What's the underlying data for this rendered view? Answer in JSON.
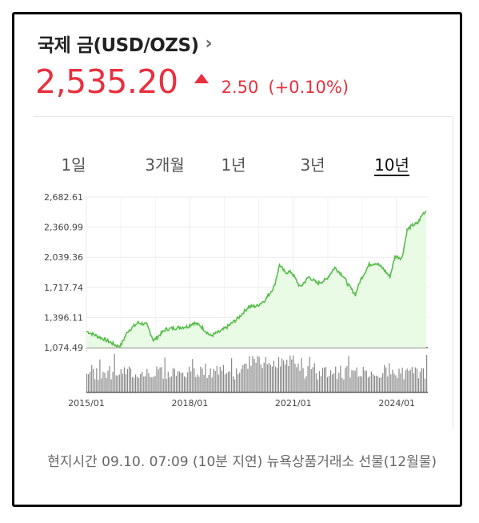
{
  "header": {
    "title": "국제 금(USD/OZS)",
    "price": "2,535.20",
    "change": "2.50",
    "change_pct": "(+0.10%)",
    "direction": "up",
    "accent_color": "#e8303f"
  },
  "tabs": [
    {
      "label": "1일",
      "active": false
    },
    {
      "label": "3개월",
      "active": false
    },
    {
      "label": "1년",
      "active": false
    },
    {
      "label": "3년",
      "active": false
    },
    {
      "label": "10년",
      "active": true
    }
  ],
  "chart_data": {
    "type": "area",
    "line_color": "#57bd4a",
    "fill_color": "#e9fae5",
    "ylim": [
      1074.49,
      2682.61
    ],
    "y_ticks": [
      "2,682.61",
      "2,360.99",
      "2,039.36",
      "1,717.74",
      "1,396.11",
      "1,074.49"
    ],
    "x_ticks": [
      "2015/01",
      "2018/01",
      "2021/01",
      "2024/01"
    ],
    "xlim": [
      2015.0,
      2024.9
    ],
    "series": [
      {
        "points": [
          [
            2015.0,
            1250
          ],
          [
            2015.3,
            1200
          ],
          [
            2015.6,
            1150
          ],
          [
            2015.9,
            1090
          ],
          [
            2016.0,
            1100
          ],
          [
            2016.2,
            1250
          ],
          [
            2016.5,
            1340
          ],
          [
            2016.75,
            1320
          ],
          [
            2016.95,
            1150
          ],
          [
            2017.3,
            1270
          ],
          [
            2017.7,
            1290
          ],
          [
            2017.95,
            1300
          ],
          [
            2018.1,
            1340
          ],
          [
            2018.3,
            1310
          ],
          [
            2018.6,
            1200
          ],
          [
            2018.9,
            1250
          ],
          [
            2019.1,
            1300
          ],
          [
            2019.4,
            1390
          ],
          [
            2019.7,
            1510
          ],
          [
            2019.95,
            1520
          ],
          [
            2020.2,
            1590
          ],
          [
            2020.45,
            1730
          ],
          [
            2020.6,
            1960
          ],
          [
            2020.75,
            1880
          ],
          [
            2020.95,
            1880
          ],
          [
            2021.2,
            1720
          ],
          [
            2021.45,
            1830
          ],
          [
            2021.7,
            1760
          ],
          [
            2021.95,
            1800
          ],
          [
            2022.2,
            1930
          ],
          [
            2022.45,
            1840
          ],
          [
            2022.6,
            1740
          ],
          [
            2022.8,
            1640
          ],
          [
            2022.95,
            1800
          ],
          [
            2023.2,
            1960
          ],
          [
            2023.4,
            1980
          ],
          [
            2023.6,
            1920
          ],
          [
            2023.8,
            1830
          ],
          [
            2023.95,
            2050
          ],
          [
            2024.15,
            2030
          ],
          [
            2024.3,
            2330
          ],
          [
            2024.45,
            2380
          ],
          [
            2024.6,
            2400
          ],
          [
            2024.75,
            2500
          ],
          [
            2024.85,
            2535
          ]
        ]
      }
    ],
    "volume_color": "#888888"
  },
  "footer": {
    "note": "현지시간 09.10. 07:09 (10분 지연) 뉴욕상품거래소 선물(12월물)"
  }
}
